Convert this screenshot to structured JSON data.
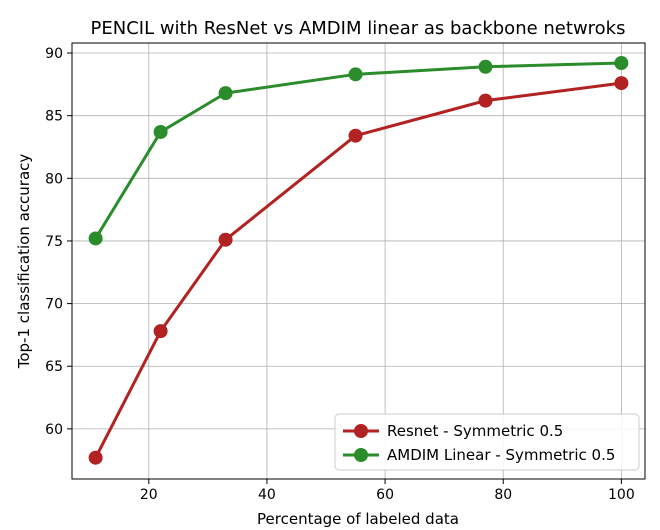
{
  "chart_data": {
    "type": "line",
    "title": "PENCIL with ResNet vs AMDIM linear as backbone netwroks",
    "xlabel": "Percentage of labeled data",
    "ylabel": "Top-1 classification accuracy",
    "xlim": [
      7,
      104
    ],
    "ylim": [
      56,
      90.8
    ],
    "xticks": [
      20,
      40,
      60,
      80,
      100
    ],
    "yticks": [
      60,
      65,
      70,
      75,
      80,
      85,
      90
    ],
    "grid": true,
    "legend_position": "lower-right",
    "series": [
      {
        "name": "Resnet - Symmetric 0.5",
        "color": "#b22222",
        "x": [
          11,
          22,
          33,
          55,
          77,
          100
        ],
        "y": [
          57.7,
          67.8,
          75.1,
          83.4,
          86.2,
          87.6
        ]
      },
      {
        "name": "AMDIM Linear - Symmetric 0.5",
        "color": "#2a8c2a",
        "x": [
          11,
          22,
          33,
          55,
          77,
          100
        ],
        "y": [
          75.2,
          83.7,
          86.8,
          88.3,
          88.9,
          89.2
        ]
      }
    ]
  }
}
